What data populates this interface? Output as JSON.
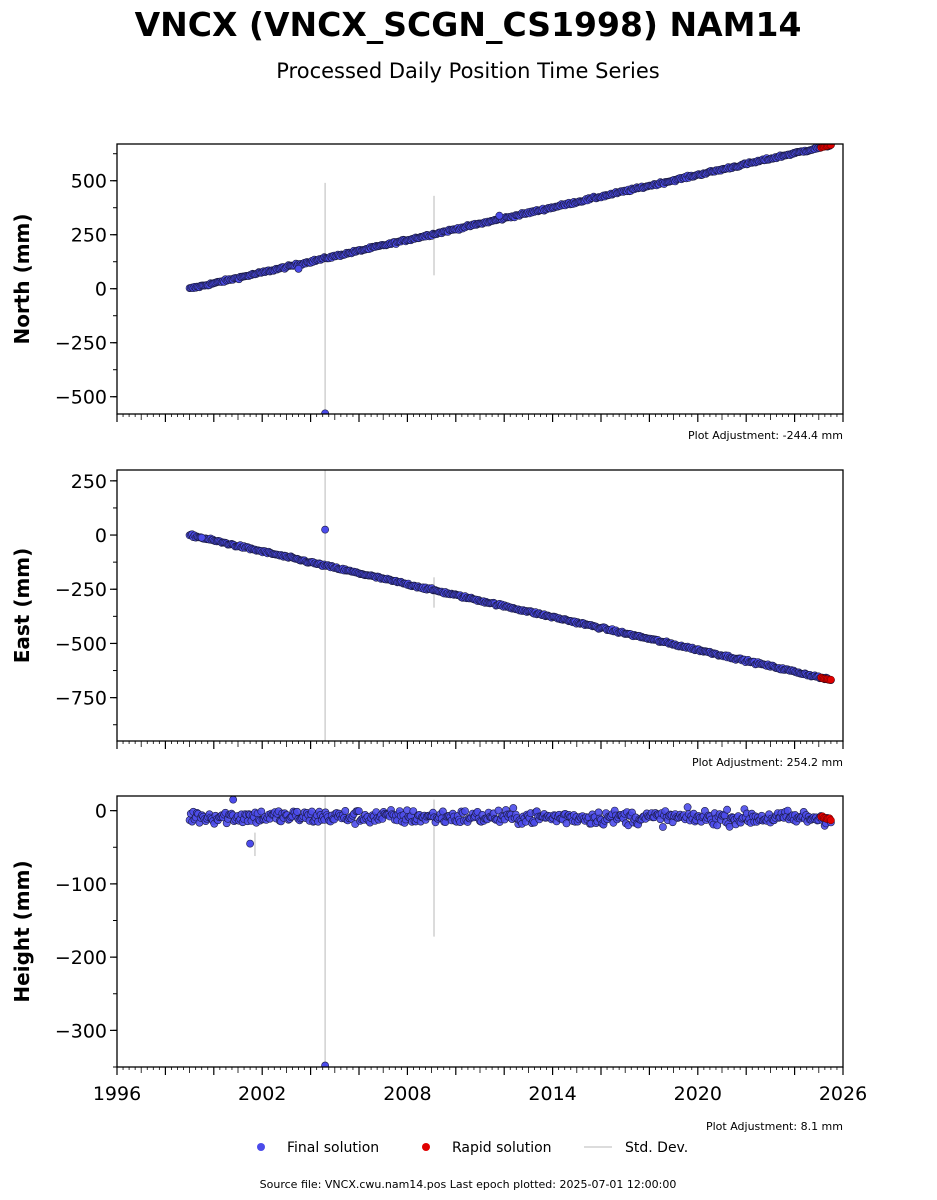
{
  "title": "VNCX (VNCX_SCGN_CS1998) NAM14",
  "subtitle": "Processed Daily Position Time Series",
  "legend": {
    "final": "Final solution",
    "rapid": "Rapid solution",
    "std": "Std. Dev."
  },
  "footer": "Source file: VNCX.cwu.nam14.pos  Last epoch plotted: 2025-07-01 12:00:00",
  "colors": {
    "final": "#4b4bea",
    "rapid": "#e00000",
    "std": "#d0d0d0",
    "edge": "#1a1a40"
  },
  "x_ticks": [
    1996,
    2002,
    2008,
    2014,
    2020,
    2026
  ],
  "chart_data": [
    {
      "type": "scatter",
      "ylabel": "North (mm)",
      "adjustment": "Plot Adjustment: -244.4 mm",
      "xlim": [
        1996,
        2026
      ],
      "ylim": [
        -580,
        670
      ],
      "yticks": [
        500,
        250,
        0,
        -250,
        -500
      ],
      "ytick_labels": [
        "500",
        "250",
        "0",
        "−250",
        "−500"
      ],
      "trend": {
        "x0": 1999.0,
        "y0": 0,
        "x1": 2025.5,
        "y1": 665
      },
      "noise": 4,
      "rapid": {
        "x0": 2025.1,
        "x1": 2025.5,
        "y0": 655,
        "y1": 665
      },
      "outliers": [
        {
          "x": 2004.6,
          "y": -577
        },
        {
          "x": 2003.5,
          "y": 92
        },
        {
          "x": 2011.8,
          "y": 338
        }
      ],
      "errorbars": [
        {
          "x": 2004.6,
          "y0": -577,
          "y1": 490
        },
        {
          "x": 2009.1,
          "y0": 62,
          "y1": 430
        }
      ]
    },
    {
      "type": "scatter",
      "ylabel": "East (mm)",
      "adjustment": "Plot Adjustment: 254.2 mm",
      "xlim": [
        1996,
        2026
      ],
      "ylim": [
        -950,
        300
      ],
      "yticks": [
        250,
        0,
        -250,
        -500,
        -750
      ],
      "ytick_labels": [
        "250",
        "0",
        "−250",
        "−500",
        "−750"
      ],
      "trend": {
        "x0": 1999.0,
        "y0": 0,
        "x1": 2025.5,
        "y1": -668
      },
      "noise": 4,
      "rapid": {
        "x0": 2025.1,
        "x1": 2025.5,
        "y0": -660,
        "y1": -668
      },
      "outliers": [
        {
          "x": 2004.6,
          "y": 25
        },
        {
          "x": 1999.5,
          "y": -12
        }
      ],
      "errorbars": [
        {
          "x": 2004.6,
          "y0": -950,
          "y1": 300
        },
        {
          "x": 2009.1,
          "y0": -335,
          "y1": -195
        }
      ]
    },
    {
      "type": "scatter",
      "ylabel": "Height (mm)",
      "adjustment": "Plot Adjustment: 8.1 mm",
      "xlim": [
        1996,
        2026
      ],
      "ylim": [
        -350,
        20
      ],
      "yticks": [
        0,
        -100,
        -200,
        -300
      ],
      "ytick_labels": [
        "0",
        "−100",
        "−200",
        "−300"
      ],
      "trend": {
        "x0": 1999.0,
        "y0": -8,
        "x1": 2025.5,
        "y1": -10
      },
      "noise": 7,
      "rapid": {
        "x0": 2025.1,
        "x1": 2025.5,
        "y0": -8,
        "y1": -13
      },
      "outliers": [
        {
          "x": 2004.6,
          "y": -348
        },
        {
          "x": 2001.5,
          "y": -45
        },
        {
          "x": 2000.8,
          "y": 15
        }
      ],
      "errorbars": [
        {
          "x": 2004.6,
          "y0": -350,
          "y1": 20
        },
        {
          "x": 2009.1,
          "y0": -172,
          "y1": 15
        },
        {
          "x": 2001.7,
          "y0": -62,
          "y1": -30
        }
      ]
    }
  ]
}
